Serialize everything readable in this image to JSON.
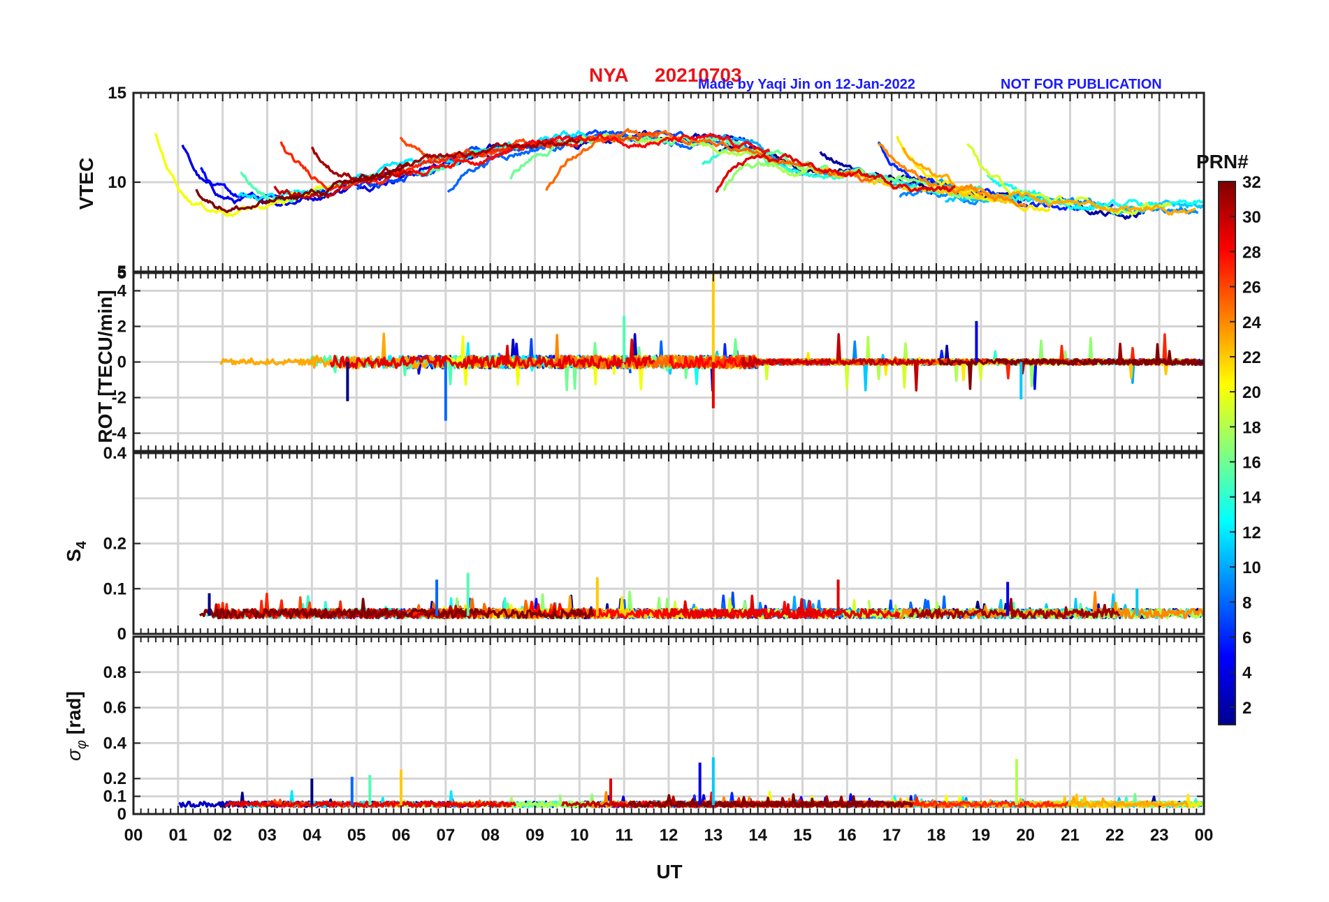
{
  "title": {
    "station": "NYA",
    "date": "20210703",
    "made_by": "Made by Yaqi Jin on 12-Jan-2022",
    "note": "NOT FOR PUBLICATION"
  },
  "colorbar": {
    "label": "PRN#",
    "ticks": [
      "2",
      "4",
      "6",
      "8",
      "10",
      "12",
      "14",
      "16",
      "18",
      "20",
      "22",
      "24",
      "26",
      "28",
      "30",
      "32"
    ],
    "range": [
      1,
      32
    ]
  },
  "chart_data": [
    {
      "type": "line",
      "id": "vtec",
      "ylabel": "VTEC",
      "ylim": [
        5,
        15
      ],
      "yticks": [
        "5",
        "10",
        "15"
      ],
      "xlim": [
        0,
        24
      ],
      "grid": true,
      "description_series": "one TEC trace per satellite PRN 1-32, values mostly between 8 and 14"
    },
    {
      "type": "line",
      "id": "rot",
      "ylabel": "ROT [TECU/min]",
      "ylim": [
        -5,
        5
      ],
      "yticks": [
        "-4",
        "-2",
        "0",
        "2",
        "4"
      ],
      "top_tick": "5",
      "xlim": [
        0,
        24
      ],
      "grid": true,
      "spikes": [
        {
          "x": 4.8,
          "y": -2.2
        },
        {
          "x": 7.0,
          "y": -3.3
        },
        {
          "x": 11.0,
          "y": 2.6
        },
        {
          "x": 13.0,
          "y": 5.0
        },
        {
          "x": 13.0,
          "y": -2.6
        },
        {
          "x": 18.9,
          "y": 2.3
        },
        {
          "x": 19.9,
          "y": -2.1
        }
      ]
    },
    {
      "type": "line",
      "id": "s4",
      "ylabel": "S",
      "ylabel_sub": "4",
      "ylim": [
        0,
        0.4
      ],
      "yticks": [
        "0",
        "0.1",
        "0.2"
      ],
      "top_tick": "0.4",
      "xlim": [
        0,
        24
      ],
      "grid": true,
      "peaks": [
        {
          "x": 1.7,
          "y": 0.09
        },
        {
          "x": 6.8,
          "y": 0.12
        },
        {
          "x": 7.5,
          "y": 0.135
        },
        {
          "x": 10.4,
          "y": 0.125
        },
        {
          "x": 15.8,
          "y": 0.12
        },
        {
          "x": 19.6,
          "y": 0.115
        },
        {
          "x": 22.5,
          "y": 0.1
        }
      ]
    },
    {
      "type": "line",
      "id": "sigma_phi",
      "ylabel": "σ",
      "ylabel_sub": "φ",
      "ylabel_unit": " [rad]",
      "ylim": [
        0,
        1
      ],
      "yticks": [
        "0",
        "0.1",
        "0.2",
        "0.4",
        "0.6",
        "0.8"
      ],
      "xlim": [
        0,
        24
      ],
      "xlabel": "UT",
      "xticks": [
        "00",
        "01",
        "02",
        "03",
        "04",
        "05",
        "06",
        "07",
        "08",
        "09",
        "10",
        "11",
        "12",
        "13",
        "14",
        "15",
        "16",
        "17",
        "18",
        "19",
        "20",
        "21",
        "22",
        "23",
        "00"
      ],
      "grid": true,
      "peaks": [
        {
          "x": 4.0,
          "y": 0.2
        },
        {
          "x": 4.9,
          "y": 0.21
        },
        {
          "x": 5.3,
          "y": 0.22
        },
        {
          "x": 6.0,
          "y": 0.25
        },
        {
          "x": 10.7,
          "y": 0.2
        },
        {
          "x": 12.7,
          "y": 0.29
        },
        {
          "x": 13.0,
          "y": 0.32
        },
        {
          "x": 19.8,
          "y": 0.31
        }
      ]
    }
  ]
}
